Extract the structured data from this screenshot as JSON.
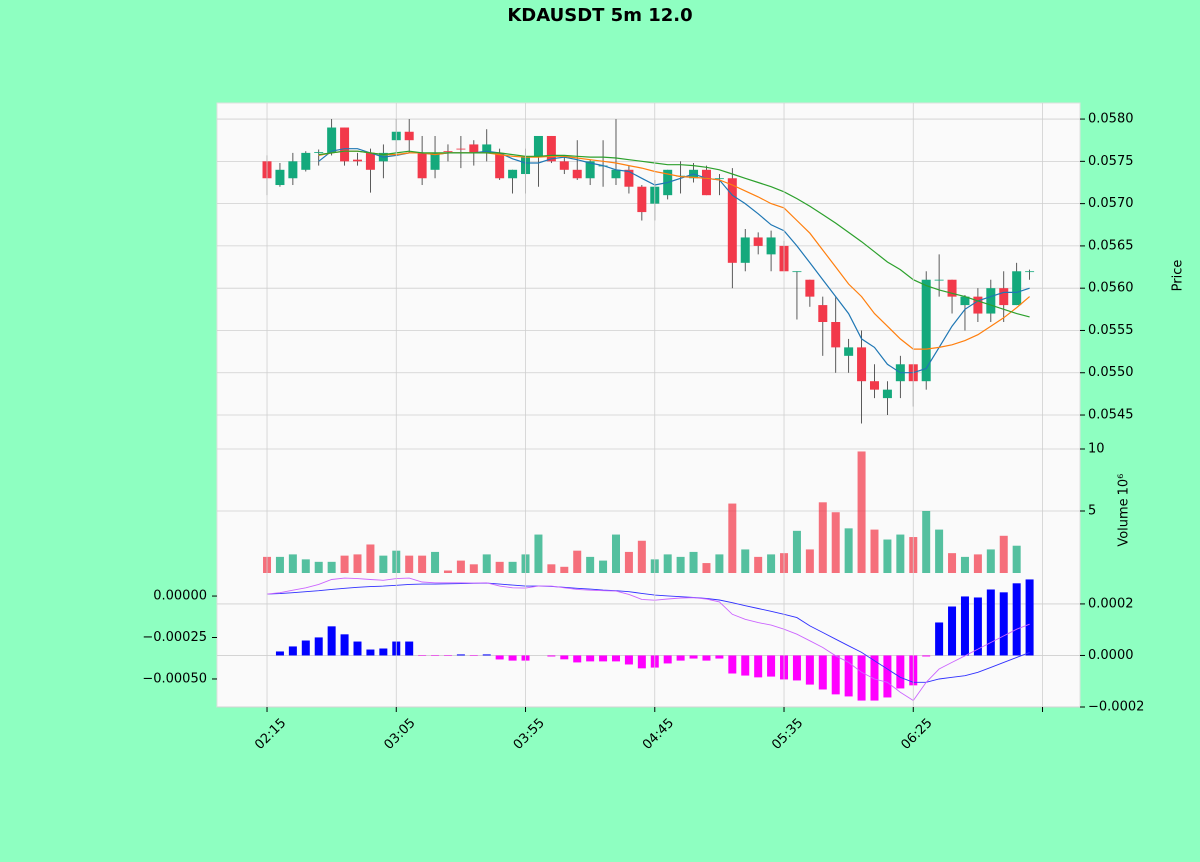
{
  "chart_data": [
    {
      "type": "candlestick",
      "title": "KDAUSDT 5m 12.0",
      "ylabel": "Price",
      "up_color": "#14a97c",
      "down_color": "#f2394a",
      "grid": true,
      "xlim": [
        -3.87,
        62.9
      ],
      "ylim": [
        0.05411,
        0.05819
      ],
      "yticks": [
        0.0545,
        {
          "value": 0.055,
          "label": "0.0550"
        },
        0.0555,
        {
          "value": 0.056,
          "label": "0.0560"
        },
        0.0565,
        {
          "value": 0.057,
          "label": "0.0570"
        },
        0.0575,
        {
          "value": 0.058,
          "label": "0.0580"
        }
      ],
      "open": [
        0.0575,
        0.05722,
        0.0573,
        0.0574,
        0.0576,
        0.0576,
        0.0579,
        0.05752,
        0.0576,
        0.0575,
        0.05775,
        0.05785,
        0.0576,
        0.0574,
        0.05762,
        0.05765,
        0.0577,
        0.0576,
        0.0576,
        0.0573,
        0.05735,
        0.05755,
        0.0578,
        0.0575,
        0.0574,
        0.0573,
        0.05745,
        0.0573,
        0.0574,
        0.0572,
        0.057,
        0.0571,
        0.05732,
        0.0573,
        0.0574,
        0.0573,
        0.0573,
        0.0563,
        0.0566,
        0.0564,
        0.0565,
        0.0562,
        0.0561,
        0.0558,
        0.0556,
        0.0552,
        0.0553,
        0.0549,
        0.0547,
        0.0549,
        0.0551,
        0.0549,
        0.0561,
        0.0561,
        0.0558,
        0.0559,
        0.0557,
        0.056,
        0.0558,
        0.0562
      ],
      "high": [
        0.05757,
        0.05748,
        0.0576,
        0.05762,
        0.05764,
        0.058,
        0.0579,
        0.0576,
        0.05765,
        0.0577,
        0.058,
        0.058,
        0.0578,
        0.0578,
        0.0577,
        0.0578,
        0.05775,
        0.05788,
        0.05765,
        0.0574,
        0.05765,
        0.0578,
        0.0578,
        0.05755,
        0.05775,
        0.05752,
        0.05775,
        0.058,
        0.05745,
        0.05722,
        0.05728,
        0.0574,
        0.0575,
        0.05748,
        0.05745,
        0.05735,
        0.05742,
        0.0567,
        0.05666,
        0.05668,
        0.05656,
        0.0562,
        0.0561,
        0.0559,
        0.0559,
        0.0554,
        0.0555,
        0.0551,
        0.0549,
        0.0552,
        0.0551,
        0.0562,
        0.0564,
        0.0561,
        0.05592,
        0.056,
        0.0561,
        0.0562,
        0.0563,
        0.05622
      ],
      "low": [
        0.0571,
        0.0572,
        0.05722,
        0.05738,
        0.05745,
        0.05757,
        0.05745,
        0.05745,
        0.05713,
        0.0573,
        0.0576,
        0.0576,
        0.05722,
        0.0573,
        0.0575,
        0.05742,
        0.05745,
        0.0575,
        0.05728,
        0.05712,
        0.05712,
        0.0572,
        0.05748,
        0.05735,
        0.05728,
        0.05722,
        0.0572,
        0.05722,
        0.05712,
        0.0568,
        0.0568,
        0.05705,
        0.05712,
        0.05725,
        0.0571,
        0.0571,
        0.056,
        0.0562,
        0.0564,
        0.0562,
        0.0562,
        0.05563,
        0.05578,
        0.0552,
        0.055,
        0.055,
        0.0544,
        0.0547,
        0.0545,
        0.0547,
        0.0546,
        0.0548,
        0.0559,
        0.0557,
        0.0555,
        0.0556,
        0.0556,
        0.0556,
        0.0558,
        0.0561
      ],
      "close": [
        0.0573,
        0.0574,
        0.0575,
        0.0576,
        0.05761,
        0.0579,
        0.0575,
        0.0575,
        0.0574,
        0.0576,
        0.05785,
        0.05775,
        0.0573,
        0.0576,
        0.05761,
        0.05764,
        0.0576,
        0.0577,
        0.0573,
        0.0574,
        0.05755,
        0.0578,
        0.0575,
        0.0574,
        0.0573,
        0.0575,
        0.05745,
        0.0574,
        0.0572,
        0.0569,
        0.0572,
        0.0574,
        0.05733,
        0.0574,
        0.0571,
        0.0573,
        0.0563,
        0.0566,
        0.0565,
        0.0566,
        0.0562,
        0.0562,
        0.0559,
        0.0556,
        0.0553,
        0.0553,
        0.0549,
        0.0548,
        0.0548,
        0.0551,
        0.0549,
        0.0561,
        0.0561,
        0.0559,
        0.0559,
        0.0557,
        0.056,
        0.0558,
        0.0562,
        0.0562
      ],
      "series": [
        {
          "color": "#1f77b4",
          "values": [
            null,
            null,
            null,
            null,
            0.0575,
            0.05762,
            0.05765,
            0.05765,
            0.0576,
            0.05755,
            0.05757,
            0.0576,
            0.0576,
            0.05758,
            0.0576,
            0.0576,
            0.0576,
            0.05762,
            0.0576,
            0.05753,
            0.05748,
            0.05748,
            0.05753,
            0.05755,
            0.05752,
            0.05748,
            0.05745,
            0.0574,
            0.05738,
            0.0573,
            0.05722,
            0.05725,
            0.0573,
            0.05735,
            0.0573,
            0.05728,
            0.0571,
            0.057,
            0.05688,
            0.05675,
            0.05668,
            0.0565,
            0.0563,
            0.0561,
            0.0559,
            0.0557,
            0.0554,
            0.0553,
            0.0551,
            0.055,
            0.055,
            0.05505,
            0.0553,
            0.05555,
            0.05575,
            0.05585,
            0.0559,
            0.05595,
            0.05595,
            0.056
          ]
        },
        {
          "color": "#ff7f0e",
          "values": [
            null,
            null,
            null,
            null,
            0.05757,
            0.0576,
            0.05762,
            0.05762,
            0.0576,
            0.05758,
            0.05758,
            0.0576,
            0.0576,
            0.05758,
            0.0576,
            0.0576,
            0.0576,
            0.0576,
            0.05758,
            0.05756,
            0.05755,
            0.05755,
            0.05756,
            0.05756,
            0.05754,
            0.05752,
            0.0575,
            0.05748,
            0.05745,
            0.05742,
            0.05738,
            0.05735,
            0.05732,
            0.05731,
            0.0573,
            0.05728,
            0.05722,
            0.05715,
            0.05708,
            0.057,
            0.05695,
            0.0568,
            0.05665,
            0.05645,
            0.05625,
            0.05605,
            0.0559,
            0.0557,
            0.05555,
            0.0554,
            0.05528,
            0.05528,
            0.0553,
            0.05533,
            0.05538,
            0.05545,
            0.05555,
            0.05565,
            0.05577,
            0.0559
          ]
        },
        {
          "color": "#2ca02c",
          "values": [
            null,
            null,
            null,
            null,
            0.05758,
            0.0576,
            0.05762,
            0.05762,
            0.0576,
            0.05758,
            0.0576,
            0.05762,
            0.0576,
            0.0576,
            0.0576,
            0.0576,
            0.0576,
            0.0576,
            0.0576,
            0.05758,
            0.05756,
            0.05756,
            0.05757,
            0.05757,
            0.05756,
            0.05755,
            0.05755,
            0.05754,
            0.05752,
            0.0575,
            0.05748,
            0.05746,
            0.05746,
            0.05745,
            0.05743,
            0.0574,
            0.05735,
            0.0573,
            0.05725,
            0.0572,
            0.05714,
            0.05706,
            0.05697,
            0.05687,
            0.05677,
            0.05666,
            0.05655,
            0.05643,
            0.05631,
            0.05622,
            0.0561,
            0.05603,
            0.05598,
            0.05594,
            0.0559,
            0.05585,
            0.0558,
            0.05575,
            0.0557,
            0.05566
          ]
        }
      ]
    },
    {
      "type": "bar",
      "ylabel": "Volume",
      "ylabel_scale": "10⁶",
      "grid": true,
      "xlim": [
        -3.87,
        62.9
      ],
      "ylim": [
        0,
        10.08
      ],
      "yticks": [
        5,
        10
      ],
      "values": [
        1.3,
        1.3,
        1.5,
        1.1,
        0.9,
        0.9,
        1.4,
        1.5,
        2.3,
        1.4,
        1.8,
        1.4,
        1.4,
        1.7,
        0.2,
        1.0,
        0.7,
        1.5,
        0.9,
        0.9,
        1.5,
        3.1,
        0.7,
        0.5,
        1.8,
        1.3,
        1.0,
        3.1,
        1.7,
        2.6,
        1.1,
        1.5,
        1.3,
        1.7,
        0.8,
        1.5,
        5.6,
        1.9,
        1.3,
        1.5,
        1.6,
        3.4,
        1.9,
        5.7,
        4.9,
        3.6,
        9.8,
        3.5,
        2.7,
        3.1,
        2.9,
        5.0,
        3.5,
        1.6,
        1.3,
        1.5,
        1.9,
        3.0,
        2.2,
        0
      ]
    },
    {
      "type": "macd",
      "grid": true,
      "xlim": [
        -3.87,
        62.9
      ],
      "ylim": [
        -0.000669,
        0.000139
      ],
      "y2lim": [
        -0.0002,
        0.00032
      ],
      "yticks": [
        {
          "value": 0,
          "label": "0.00000"
        },
        {
          "value": -0.00025,
          "label": "−0.00025"
        },
        {
          "value": -0.0005,
          "label": "−0.00050"
        }
      ],
      "y2ticks": [
        {
          "value": 0.0002,
          "label": "0.0002"
        },
        {
          "value": 0,
          "label": "0.0000"
        },
        {
          "value": -0.0002,
          "label": "−0.0002"
        }
      ],
      "xticks": [
        {
          "value": 0,
          "label": "02:15"
        },
        {
          "value": 10,
          "label": "03:05"
        },
        {
          "value": 20,
          "label": "03:55"
        },
        {
          "value": 30,
          "label": "04:45"
        },
        {
          "value": 40,
          "label": "05:35"
        },
        {
          "value": 50,
          "label": "06:25"
        },
        {
          "value": 60,
          "label": null
        }
      ],
      "series": [
        {
          "color": "#3030ff",
          "values": [
            1.2e-05,
            1.5e-05,
            2e-05,
            2.6e-05,
            3.2e-05,
            4e-05,
            4.7e-05,
            5.3e-05,
            5.7e-05,
            6e-05,
            6.5e-05,
            7e-05,
            7.2e-05,
            7.2e-05,
            7.4e-05,
            7.5e-05,
            7.7e-05,
            7.8e-05,
            7.2e-05,
            6.6e-05,
            6e-05,
            6e-05,
            5.8e-05,
            5.3e-05,
            4.7e-05,
            4.2e-05,
            3.6e-05,
            3.2e-05,
            2.6e-05,
            1.6e-05,
            6e-06,
            1e-06,
            -4e-06,
            -9e-06,
            -1.5e-05,
            -2.4e-05,
            -4e-05,
            -5.8e-05,
            -7.5e-05,
            -9.2e-05,
            -0.00011,
            -0.00013,
            -0.00018,
            -0.00022,
            -0.00026,
            -0.0003,
            -0.00034,
            -0.00039,
            -0.00044,
            -0.00049,
            -0.00052,
            -0.00052,
            -0.0005,
            -0.00049,
            -0.00048,
            -0.00046,
            -0.00043,
            -0.0004,
            -0.00037,
            -0.00034
          ]
        },
        {
          "color": "#cc66ff",
          "values": [
            1.2e-05,
            2e-05,
            3.5e-05,
            5e-05,
            7e-05,
            0.0001,
            0.000108,
            0.000105,
            0.0001,
            9.5e-05,
            0.000105,
            0.000108,
            8.5e-05,
            8e-05,
            8e-05,
            8e-05,
            7.8e-05,
            8e-05,
            6e-05,
            5e-05,
            4.8e-05,
            6e-05,
            6e-05,
            5e-05,
            4e-05,
            3.5e-05,
            3.2e-05,
            3e-05,
            1e-05,
            -2e-05,
            -2.5e-05,
            -1.8e-05,
            -1.2e-05,
            -1e-05,
            -1.8e-05,
            -3.5e-05,
            -0.00011,
            -0.00014,
            -0.00016,
            -0.000175,
            -0.0002,
            -0.00023,
            -0.00027,
            -0.00031,
            -0.00036,
            -0.0004,
            -0.00046,
            -0.0005,
            -0.00052,
            -0.00058,
            -0.00063,
            -0.00052,
            -0.00044,
            -0.0004,
            -0.00036,
            -0.00032,
            -0.00028,
            -0.00024,
            -0.0002,
            -0.00017
          ]
        }
      ],
      "histogram": {
        "axis": "y2",
        "pos_color": "#0000ff",
        "neg_color": "#ff00ff",
        "values": [
          0,
          1.55e-05,
          3.5e-05,
          5.8e-05,
          7e-05,
          0.000113,
          8.2e-05,
          5.4e-05,
          2.3e-05,
          2.7e-05,
          5.4e-05,
          5.4e-05,
          -2e-06,
          -2e-06,
          -2e-06,
          4e-06,
          -2e-06,
          4e-06,
          -1.55e-05,
          -2e-05,
          -2e-05,
          0,
          -4e-06,
          -1.5e-05,
          -2.7e-05,
          -2.3e-05,
          -2.3e-05,
          -2.3e-05,
          -3.5e-05,
          -5e-05,
          -4.7e-05,
          -3.1e-05,
          -2e-05,
          -1.2e-05,
          -2e-05,
          -1.2e-05,
          -7e-05,
          -7.8e-05,
          -8.5e-05,
          -8.2e-05,
          -9.3e-05,
          -9.7e-05,
          -0.000113,
          -0.000132,
          -0.000151,
          -0.000159,
          -0.000175,
          -0.000175,
          -0.000163,
          -0.000128,
          -0.000116,
          -4e-06,
          0.000128,
          0.00019,
          0.000229,
          0.000225,
          0.000256,
          0.000245,
          0.00028,
          0.000295
        ]
      }
    }
  ]
}
